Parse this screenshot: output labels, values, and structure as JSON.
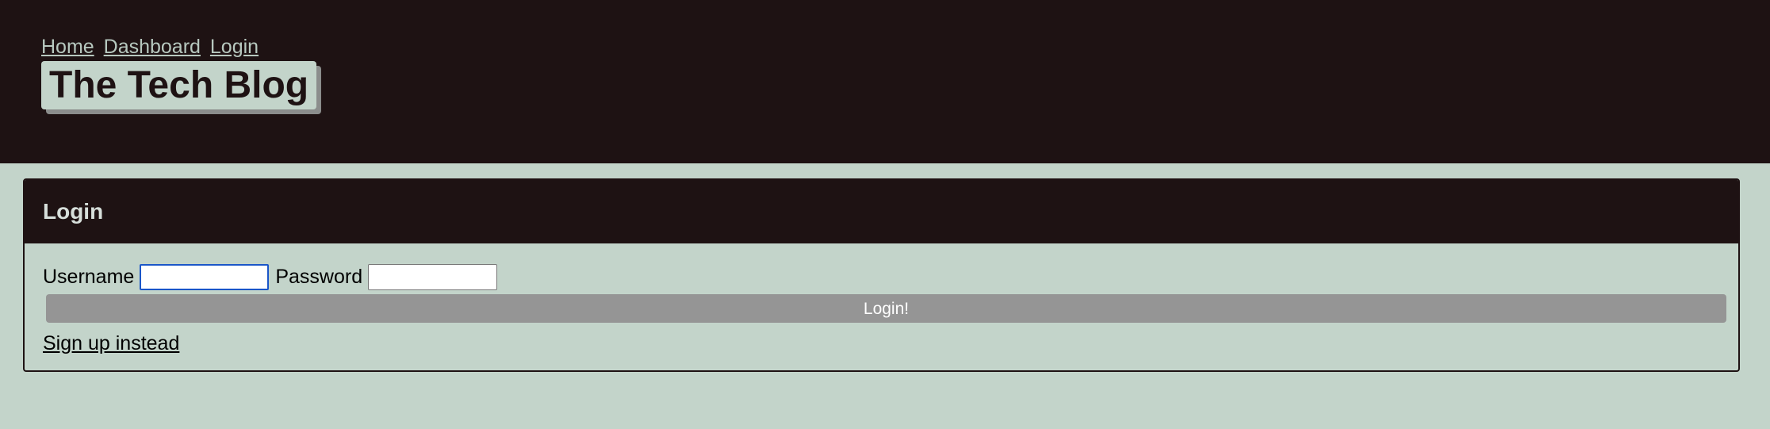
{
  "nav": {
    "items": [
      {
        "label": "Home"
      },
      {
        "label": "Dashboard"
      },
      {
        "label": "Login"
      }
    ]
  },
  "brand": {
    "title": "The Tech Blog"
  },
  "login_card": {
    "title": "Login",
    "username_label": "Username",
    "username_value": "",
    "password_label": "Password",
    "password_value": "",
    "submit_label": "Login!",
    "signup_link": "Sign up instead"
  },
  "colors": {
    "header_bg": "#1e1213",
    "page_bg": "#c3d4ca",
    "button_bg": "#959595",
    "focus_ring": "#1a56c8"
  }
}
